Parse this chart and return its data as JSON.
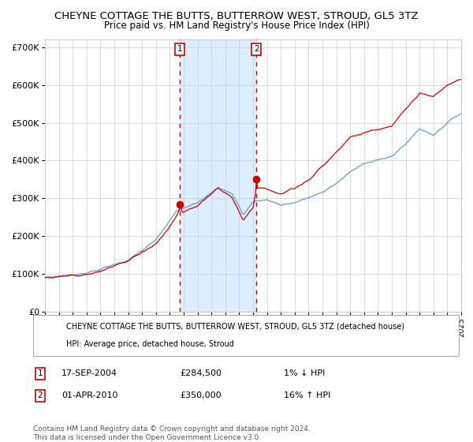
{
  "title": "CHEYNE COTTAGE THE BUTTS, BUTTERROW WEST, STROUD, GL5 3TZ",
  "subtitle": "Price paid vs. HM Land Registry's House Price Index (HPI)",
  "ylim": [
    0,
    720000
  ],
  "yticks": [
    0,
    100000,
    200000,
    300000,
    400000,
    500000,
    600000,
    700000
  ],
  "ytick_labels": [
    "£0",
    "£100K",
    "£200K",
    "£300K",
    "£400K",
    "£500K",
    "£600K",
    "£700K"
  ],
  "x_start_year": 1995,
  "x_end_year": 2025,
  "sale1_date": 2004.72,
  "sale1_price": 284500,
  "sale2_date": 2010.25,
  "sale2_price": 350000,
  "sale1_display": "17-SEP-2004",
  "sale1_amount": "£284,500",
  "sale1_hpi": "1% ↓ HPI",
  "sale2_display": "01-APR-2010",
  "sale2_amount": "£350,000",
  "sale2_hpi": "16% ↑ HPI",
  "red_color": "#cc0000",
  "blue_color": "#6699cc",
  "shade_color": "#ddeeff",
  "grid_color": "#cccccc",
  "bg_color": "#ffffff",
  "legend_label_red": "CHEYNE COTTAGE THE BUTTS, BUTTERROW WEST, STROUD, GL5 3TZ (detached house)",
  "legend_label_blue": "HPI: Average price, detached house, Stroud",
  "footer": "Contains HM Land Registry data © Crown copyright and database right 2024.\nThis data is licensed under the Open Government Licence v3.0."
}
